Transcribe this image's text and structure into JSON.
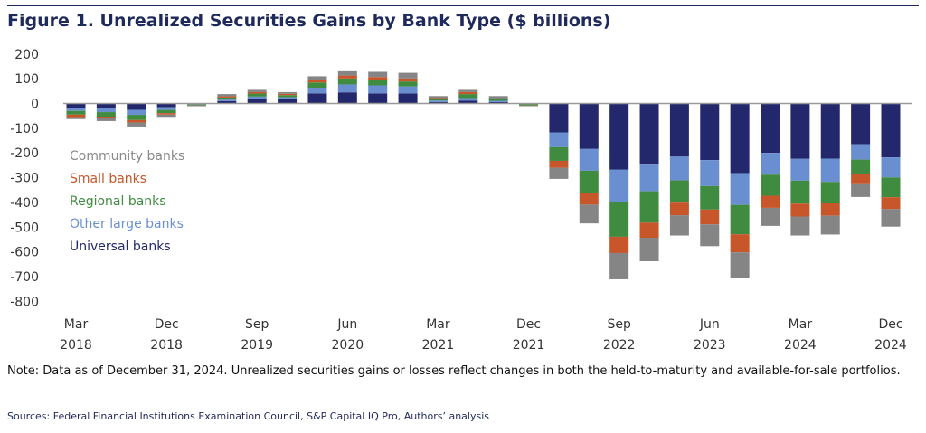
{
  "title": "Figure 1. Unrealized Securities Gains by Bank Type ($ billions)",
  "note": "Note: Data as of December 31, 2024. Unrealized securities gains or losses reflect changes in both the held-to-maturity and available-for-sale portfolios.",
  "sources": "Sources: Federal Financial Institutions Examination Council, S&P Capital IQ Pro, Authors’ analysis",
  "chart_data": {
    "type": "bar",
    "stacked": true,
    "title": "Figure 1. Unrealized Securities Gains by Bank Type ($ billions)",
    "xlabel": "",
    "ylabel": "",
    "ylim": [
      -800,
      200
    ],
    "yticks": [
      "200",
      "100",
      "0",
      "-100",
      "-200",
      "-300",
      "-400",
      "-500",
      "-600",
      "-700",
      "-800"
    ],
    "grid": false,
    "legend_placement": "left",
    "categories": [
      "Mar 2018",
      "Jun 2018",
      "Sep 2018",
      "Dec 2018",
      "Mar 2019",
      "Jun 2019",
      "Sep 2019",
      "Dec 2019",
      "Mar 2020",
      "Jun 2020",
      "Sep 2020",
      "Dec 2020",
      "Mar 2021",
      "Jun 2021",
      "Sep 2021",
      "Dec 2021",
      "Mar 2022",
      "Jun 2022",
      "Sep 2022",
      "Dec 2022",
      "Mar 2023",
      "Jun 2023",
      "Sep 2023",
      "Dec 2023",
      "Mar 2024",
      "Jun 2024",
      "Sep 2024",
      "Dec 2024"
    ],
    "xtick_labels": [
      {
        "index": 0,
        "month": "Mar",
        "year": "2018"
      },
      {
        "index": 3,
        "month": "Dec",
        "year": "2018"
      },
      {
        "index": 6,
        "month": "Sep",
        "year": "2019"
      },
      {
        "index": 9,
        "month": "Jun",
        "year": "2020"
      },
      {
        "index": 12,
        "month": "Mar",
        "year": "2021"
      },
      {
        "index": 15,
        "month": "Dec",
        "year": "2021"
      },
      {
        "index": 18,
        "month": "Sep",
        "year": "2022"
      },
      {
        "index": 21,
        "month": "Jun",
        "year": "2023"
      },
      {
        "index": 24,
        "month": "Mar",
        "year": "2024"
      },
      {
        "index": 27,
        "month": "Dec",
        "year": "2024"
      }
    ],
    "series": [
      {
        "name": "Universal banks",
        "color": "#22286b",
        "values": [
          -17,
          -18,
          -26,
          -15,
          -2,
          10,
          18,
          18,
          41,
          45,
          41,
          41,
          6,
          12,
          6,
          -1,
          -117,
          -184,
          -268,
          -244,
          -215,
          -229,
          -282,
          -200,
          -224,
          -223,
          -165,
          -218
        ]
      },
      {
        "name": "Other large banks",
        "color": "#6a8fd0",
        "values": [
          -13,
          -17,
          -20,
          -11,
          -2,
          6,
          10,
          7,
          23,
          32,
          32,
          28,
          6,
          10,
          5,
          -2,
          -60,
          -88,
          -132,
          -111,
          -96,
          -105,
          -128,
          -88,
          -88,
          -94,
          -62,
          -81
        ]
      },
      {
        "name": "Regional banks",
        "color": "#3f8b40",
        "values": [
          -15,
          -18,
          -21,
          -13,
          -3,
          8,
          12,
          9,
          21,
          24,
          22,
          20,
          6,
          16,
          7,
          -5,
          -55,
          -91,
          -139,
          -127,
          -90,
          -95,
          -119,
          -85,
          -93,
          -87,
          -60,
          -80
        ]
      },
      {
        "name": "Small banks",
        "color": "#c8562b",
        "values": [
          -10,
          -7,
          -10,
          -6,
          -1,
          5,
          6,
          5,
          10,
          12,
          12,
          12,
          4,
          8,
          2,
          -1,
          -28,
          -46,
          -66,
          -61,
          -51,
          -60,
          -73,
          -49,
          -52,
          -50,
          -36,
          -48
        ]
      },
      {
        "name": "Community banks",
        "color": "#858585",
        "values": [
          -8,
          -11,
          -16,
          -9,
          -3,
          9,
          9,
          7,
          15,
          21,
          21,
          23,
          8,
          9,
          10,
          -1,
          -45,
          -76,
          -106,
          -95,
          -82,
          -88,
          -103,
          -73,
          -77,
          -76,
          -55,
          -71
        ]
      }
    ],
    "legend_order": [
      "Community banks",
      "Small banks",
      "Regional banks",
      "Other large banks",
      "Universal banks"
    ]
  }
}
